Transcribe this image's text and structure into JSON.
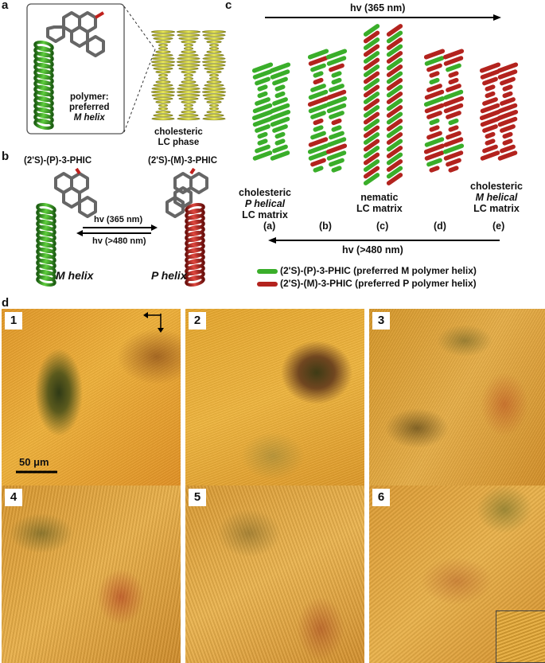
{
  "panel_letters": {
    "a": "a",
    "b": "b",
    "c": "c",
    "d": "d"
  },
  "panel_a": {
    "polymer_line1": "polymer:",
    "polymer_line2": "preferred",
    "polymer_line3": "M helix",
    "phase_line1": "cholesteric",
    "phase_line2": "LC phase"
  },
  "panel_b": {
    "left_compound": "(2'S)-(P)-3-PHIC",
    "right_compound": "(2'S)-(M)-3-PHIC",
    "arrow_forward": "hv (365 nm)",
    "arrow_back": "hv (>480 nm)",
    "left_helix": "M helix",
    "right_helix": "P helix",
    "colors": {
      "green": "#2e8b1f",
      "red": "#b3231e"
    }
  },
  "panel_c": {
    "top_arrow": "hv (365 nm)",
    "bottom_arrow": "hv (>480 nm)",
    "labels": [
      {
        "id": "a",
        "lines": [
          "cholesteric",
          "P helical",
          "LC matrix"
        ]
      },
      {
        "id": "b",
        "lines": []
      },
      {
        "id": "c",
        "lines": [
          "nematic",
          "LC matrix"
        ]
      },
      {
        "id": "d",
        "lines": []
      },
      {
        "id": "e",
        "lines": [
          "cholesteric",
          "M helical",
          "LC matrix"
        ]
      }
    ],
    "letters": [
      "(a)",
      "(b)",
      "(c)",
      "(d)",
      "(e)"
    ],
    "legend": [
      {
        "color": "#3aae2a",
        "text": "(2'S)-(P)-3-PHIC (preferred M polymer helix)"
      },
      {
        "color": "#b3231e",
        "text": "(2'S)-(M)-3-PHIC (preferred P polymer helix)"
      }
    ]
  },
  "panel_d": {
    "tiles": [
      "1",
      "2",
      "3",
      "4",
      "5",
      "6"
    ],
    "scale_bar": "50 μm"
  }
}
